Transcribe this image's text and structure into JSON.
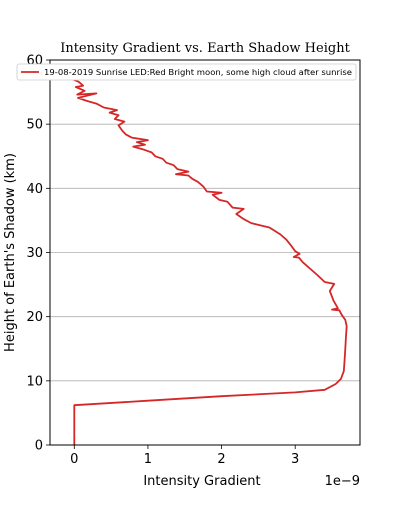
{
  "chart_data": {
    "type": "line",
    "title": "Intensity Gradient vs. Earth Shadow Height",
    "xlabel": "Intensity Gradient",
    "ylabel": "Height of Earth's Shadow (km)",
    "x_offset_label": "1e−9",
    "xlim": [
      -0.33,
      3.88
    ],
    "ylim": [
      0,
      60
    ],
    "x_ticks": [
      0,
      1,
      2,
      3
    ],
    "x_tick_labels": [
      "0",
      "1",
      "2",
      "3"
    ],
    "y_ticks": [
      0,
      10,
      20,
      30,
      40,
      50,
      60
    ],
    "y_tick_labels": [
      "0",
      "10",
      "20",
      "30",
      "40",
      "50",
      "60"
    ],
    "grid": "horizontal",
    "legend_position": "top-left",
    "line_color": "#d62728",
    "series": [
      {
        "name": "19-08-2019  Sunrise LED:Red Bright moon, some high cloud after sunrise",
        "points": [
          [
            0,
            0
          ],
          [
            0,
            3
          ],
          [
            0,
            6.2
          ],
          [
            1.0,
            6.9
          ],
          [
            2.0,
            7.6
          ],
          [
            3.0,
            8.2
          ],
          [
            3.4,
            8.6
          ],
          [
            3.55,
            9.5
          ],
          [
            3.62,
            10.3
          ],
          [
            3.66,
            11.5
          ],
          [
            3.67,
            13
          ],
          [
            3.68,
            15
          ],
          [
            3.69,
            17
          ],
          [
            3.7,
            18.5
          ],
          [
            3.68,
            19.5
          ],
          [
            3.63,
            20.3
          ],
          [
            3.6,
            21.0
          ],
          [
            3.5,
            21.1
          ],
          [
            3.58,
            21.3
          ],
          [
            3.52,
            22.5
          ],
          [
            3.47,
            24.0
          ],
          [
            3.53,
            25.1
          ],
          [
            3.4,
            25.4
          ],
          [
            3.3,
            26.5
          ],
          [
            3.2,
            27.5
          ],
          [
            3.1,
            28.5
          ],
          [
            3.05,
            29.2
          ],
          [
            2.98,
            29.3
          ],
          [
            3.06,
            29.8
          ],
          [
            3.0,
            30.2
          ],
          [
            2.95,
            31.0
          ],
          [
            2.88,
            32.0
          ],
          [
            2.8,
            32.8
          ],
          [
            2.72,
            33.4
          ],
          [
            2.65,
            33.9
          ],
          [
            2.5,
            34.3
          ],
          [
            2.4,
            34.6
          ],
          [
            2.3,
            35.2
          ],
          [
            2.2,
            36.0
          ],
          [
            2.3,
            36.8
          ],
          [
            2.15,
            37.0
          ],
          [
            2.08,
            37.9
          ],
          [
            1.97,
            38.2
          ],
          [
            1.88,
            39.0
          ],
          [
            2.0,
            39.3
          ],
          [
            1.8,
            39.5
          ],
          [
            1.75,
            40.3
          ],
          [
            1.68,
            41.0
          ],
          [
            1.6,
            41.5
          ],
          [
            1.55,
            42.0
          ],
          [
            1.38,
            42.2
          ],
          [
            1.55,
            42.6
          ],
          [
            1.4,
            43.0
          ],
          [
            1.35,
            43.6
          ],
          [
            1.25,
            44.0
          ],
          [
            1.2,
            44.6
          ],
          [
            1.1,
            45.0
          ],
          [
            1.05,
            45.6
          ],
          [
            0.95,
            46.0
          ],
          [
            0.8,
            46.5
          ],
          [
            0.96,
            46.8
          ],
          [
            0.85,
            47.2
          ],
          [
            1.0,
            47.5
          ],
          [
            0.78,
            47.9
          ],
          [
            0.7,
            48.4
          ],
          [
            0.65,
            49.0
          ],
          [
            0.6,
            49.8
          ],
          [
            0.68,
            50.4
          ],
          [
            0.55,
            50.8
          ],
          [
            0.6,
            51.4
          ],
          [
            0.48,
            51.8
          ],
          [
            0.58,
            52.2
          ],
          [
            0.4,
            52.6
          ],
          [
            0.3,
            53.2
          ],
          [
            0.18,
            53.6
          ],
          [
            0.05,
            54.1
          ],
          [
            0.3,
            54.8
          ],
          [
            0.04,
            54.6
          ],
          [
            0.14,
            55.2
          ],
          [
            0.02,
            55.8
          ],
          [
            0.12,
            56.0
          ],
          [
            0.06,
            56.6
          ],
          [
            -0.02,
            57.0
          ],
          [
            0.02,
            57.5
          ]
        ]
      }
    ]
  }
}
